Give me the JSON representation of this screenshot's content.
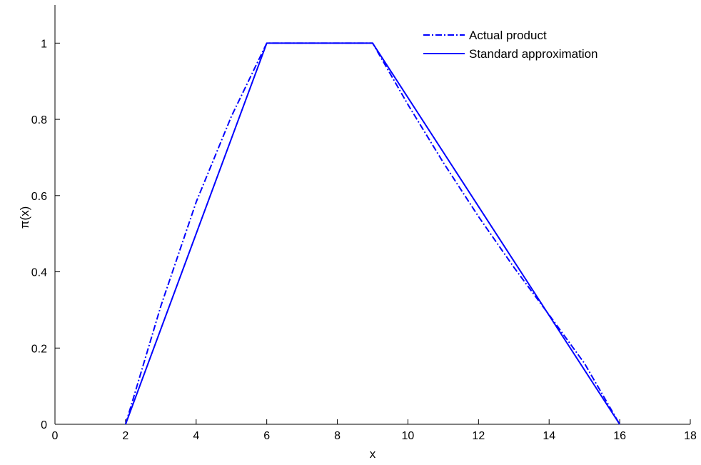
{
  "chart_data": {
    "type": "line",
    "title": "",
    "xlabel": "x",
    "ylabel": "π(x)",
    "xlim": [
      0,
      18
    ],
    "ylim": [
      0,
      1.1
    ],
    "xticks": [
      0,
      2,
      4,
      6,
      8,
      10,
      12,
      14,
      16,
      18
    ],
    "yticks": [
      0,
      0.2,
      0.4,
      0.6,
      0.8,
      1
    ],
    "xtick_labels": [
      "0",
      "2",
      "4",
      "6",
      "8",
      "10",
      "12",
      "14",
      "16",
      "18"
    ],
    "ytick_labels": [
      "0",
      "0.2",
      "0.4",
      "0.6",
      "0.8",
      "1"
    ],
    "grid": false,
    "legend_position": "top-right",
    "series": [
      {
        "name": "Actual product",
        "style": "dashdot",
        "color": "#0000ff",
        "x": [
          2,
          3,
          4,
          5,
          6,
          9,
          10,
          11,
          12,
          13,
          14,
          15,
          16
        ],
        "y": [
          0,
          0.31,
          0.583,
          0.808,
          1,
          1,
          0.839,
          0.687,
          0.545,
          0.412,
          0.287,
          0.16,
          0
        ]
      },
      {
        "name": "Standard approximation",
        "style": "solid",
        "color": "#0000ff",
        "x": [
          2,
          6,
          9,
          16
        ],
        "y": [
          0,
          1,
          1,
          0
        ]
      }
    ]
  }
}
